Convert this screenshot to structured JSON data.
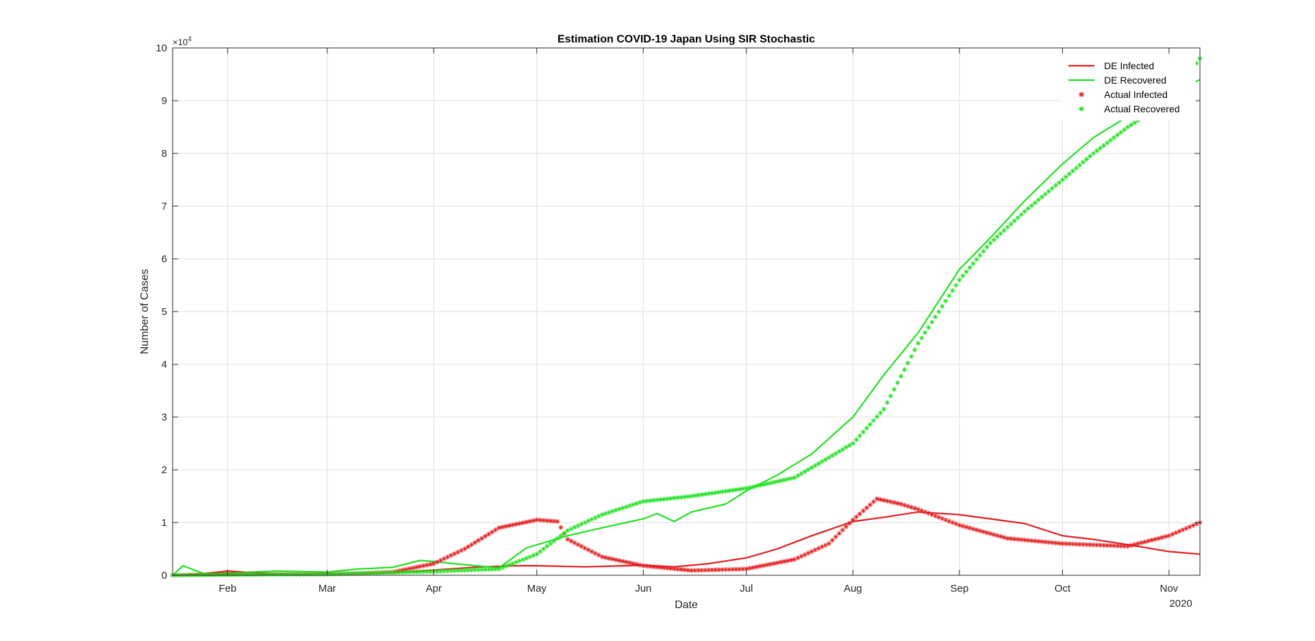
{
  "chart_data": {
    "type": "line",
    "title": "Estimation COVID-19 Japan Using SIR Stochastic",
    "xlabel": "Date",
    "ylabel": "Number of Cases",
    "y_exponent_label": "×10",
    "y_exponent_power": "4",
    "year_label": "2020",
    "grid": true,
    "legend_position": "top-right",
    "x_range": [
      "2020-01-16",
      "2020-11-10"
    ],
    "ylim": [
      0,
      100000
    ],
    "x_ticks": [
      {
        "date": "2020-02-01",
        "label": "Feb"
      },
      {
        "date": "2020-03-01",
        "label": "Mar"
      },
      {
        "date": "2020-04-01",
        "label": "Apr"
      },
      {
        "date": "2020-05-01",
        "label": "May"
      },
      {
        "date": "2020-06-01",
        "label": "Jun"
      },
      {
        "date": "2020-07-01",
        "label": "Jul"
      },
      {
        "date": "2020-08-01",
        "label": "Aug"
      },
      {
        "date": "2020-09-01",
        "label": "Sep"
      },
      {
        "date": "2020-10-01",
        "label": "Oct"
      },
      {
        "date": "2020-11-01",
        "label": "Nov"
      }
    ],
    "y_ticks": [
      {
        "value": 0,
        "label": "0"
      },
      {
        "value": 10000,
        "label": "1"
      },
      {
        "value": 20000,
        "label": "2"
      },
      {
        "value": 30000,
        "label": "3"
      },
      {
        "value": 40000,
        "label": "4"
      },
      {
        "value": 50000,
        "label": "5"
      },
      {
        "value": 60000,
        "label": "6"
      },
      {
        "value": 70000,
        "label": "7"
      },
      {
        "value": 80000,
        "label": "8"
      },
      {
        "value": 90000,
        "label": "9"
      },
      {
        "value": 100000,
        "label": "10"
      }
    ],
    "series": [
      {
        "name": "DE Infected",
        "style": "line",
        "color": "#e31a1c",
        "points": [
          [
            "2020-01-16",
            0
          ],
          [
            "2020-01-25",
            300
          ],
          [
            "2020-02-01",
            800
          ],
          [
            "2020-02-10",
            400
          ],
          [
            "2020-02-20",
            200
          ],
          [
            "2020-03-01",
            300
          ],
          [
            "2020-03-10",
            300
          ],
          [
            "2020-03-20",
            500
          ],
          [
            "2020-04-01",
            1000
          ],
          [
            "2020-04-15",
            1600
          ],
          [
            "2020-04-25",
            1800
          ],
          [
            "2020-05-01",
            1800
          ],
          [
            "2020-05-15",
            1600
          ],
          [
            "2020-06-01",
            1900
          ],
          [
            "2020-06-10",
            1600
          ],
          [
            "2020-06-20",
            2200
          ],
          [
            "2020-07-01",
            3300
          ],
          [
            "2020-07-10",
            5000
          ],
          [
            "2020-07-20",
            7500
          ],
          [
            "2020-08-01",
            10200
          ],
          [
            "2020-08-10",
            11000
          ],
          [
            "2020-08-20",
            12000
          ],
          [
            "2020-09-01",
            11500
          ],
          [
            "2020-09-10",
            10700
          ],
          [
            "2020-09-20",
            9800
          ],
          [
            "2020-10-01",
            7500
          ],
          [
            "2020-10-10",
            6800
          ],
          [
            "2020-10-20",
            5800
          ],
          [
            "2020-11-01",
            4500
          ],
          [
            "2020-11-10",
            4000
          ]
        ]
      },
      {
        "name": "DE Recovered",
        "style": "line",
        "color": "#1fe01f",
        "points": [
          [
            "2020-01-16",
            0
          ],
          [
            "2020-01-19",
            1800
          ],
          [
            "2020-01-25",
            300
          ],
          [
            "2020-02-05",
            500
          ],
          [
            "2020-02-15",
            800
          ],
          [
            "2020-03-01",
            600
          ],
          [
            "2020-03-10",
            1200
          ],
          [
            "2020-03-20",
            1500
          ],
          [
            "2020-03-28",
            2800
          ],
          [
            "2020-04-01",
            2600
          ],
          [
            "2020-04-10",
            2000
          ],
          [
            "2020-04-20",
            1400
          ],
          [
            "2020-04-28",
            5200
          ],
          [
            "2020-05-10",
            7500
          ],
          [
            "2020-05-20",
            9000
          ],
          [
            "2020-06-01",
            10700
          ],
          [
            "2020-06-05",
            11700
          ],
          [
            "2020-06-10",
            10200
          ],
          [
            "2020-06-15",
            12000
          ],
          [
            "2020-06-25",
            13500
          ],
          [
            "2020-07-01",
            16000
          ],
          [
            "2020-07-10",
            19000
          ],
          [
            "2020-07-20",
            23000
          ],
          [
            "2020-08-01",
            30000
          ],
          [
            "2020-08-10",
            38000
          ],
          [
            "2020-08-20",
            46000
          ],
          [
            "2020-09-01",
            58000
          ],
          [
            "2020-09-10",
            64000
          ],
          [
            "2020-09-20",
            71000
          ],
          [
            "2020-10-01",
            78000
          ],
          [
            "2020-10-10",
            83000
          ],
          [
            "2020-10-20",
            87000
          ],
          [
            "2020-11-01",
            91000
          ],
          [
            "2020-11-10",
            94000
          ]
        ]
      },
      {
        "name": "Actual Infected",
        "style": "markers",
        "color": "#e31a1c",
        "points": [
          [
            "2020-01-16",
            0
          ],
          [
            "2020-02-01",
            200
          ],
          [
            "2020-03-01",
            200
          ],
          [
            "2020-03-20",
            600
          ],
          [
            "2020-04-01",
            2200
          ],
          [
            "2020-04-10",
            5000
          ],
          [
            "2020-04-20",
            9000
          ],
          [
            "2020-05-01",
            10500
          ],
          [
            "2020-05-07",
            10200
          ],
          [
            "2020-05-10",
            6800
          ],
          [
            "2020-05-20",
            3500
          ],
          [
            "2020-06-01",
            1800
          ],
          [
            "2020-06-15",
            900
          ],
          [
            "2020-07-01",
            1200
          ],
          [
            "2020-07-15",
            3000
          ],
          [
            "2020-07-25",
            6000
          ],
          [
            "2020-08-01",
            10500
          ],
          [
            "2020-08-08",
            14500
          ],
          [
            "2020-08-15",
            13500
          ],
          [
            "2020-08-20",
            12500
          ],
          [
            "2020-09-01",
            9500
          ],
          [
            "2020-09-15",
            7000
          ],
          [
            "2020-10-01",
            6000
          ],
          [
            "2020-10-20",
            5500
          ],
          [
            "2020-11-01",
            7500
          ],
          [
            "2020-11-10",
            10000
          ]
        ]
      },
      {
        "name": "Actual Recovered",
        "style": "markers",
        "color": "#1fe01f",
        "points": [
          [
            "2020-01-16",
            0
          ],
          [
            "2020-02-01",
            100
          ],
          [
            "2020-03-01",
            200
          ],
          [
            "2020-04-01",
            700
          ],
          [
            "2020-04-20",
            1200
          ],
          [
            "2020-05-01",
            4000
          ],
          [
            "2020-05-10",
            8500
          ],
          [
            "2020-05-20",
            11500
          ],
          [
            "2020-06-01",
            14000
          ],
          [
            "2020-06-15",
            15000
          ],
          [
            "2020-07-01",
            16500
          ],
          [
            "2020-07-15",
            18500
          ],
          [
            "2020-08-01",
            25000
          ],
          [
            "2020-08-10",
            31500
          ],
          [
            "2020-08-20",
            44000
          ],
          [
            "2020-09-01",
            56000
          ],
          [
            "2020-09-10",
            63000
          ],
          [
            "2020-09-20",
            69000
          ],
          [
            "2020-10-01",
            75000
          ],
          [
            "2020-10-10",
            80000
          ],
          [
            "2020-10-20",
            85000
          ],
          [
            "2020-11-01",
            90000
          ],
          [
            "2020-11-10",
            98000
          ]
        ]
      }
    ]
  }
}
